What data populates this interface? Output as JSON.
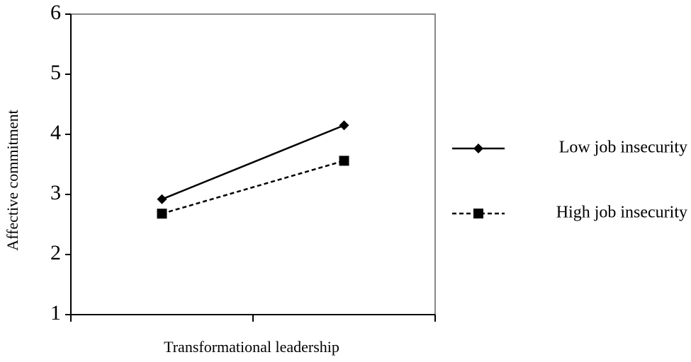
{
  "chart_data": {
    "type": "line",
    "x_label": "Transformational leadership",
    "y_label": "Affective commitment",
    "categories": [
      null,
      null
    ],
    "series": [
      {
        "name": "Low job insecurity",
        "color": "#000000",
        "marker": "diamond",
        "dash": "solid",
        "values": [
          2.92,
          4.15
        ]
      },
      {
        "name": "High job insecurity",
        "color": "#000000",
        "marker": "square",
        "dash": "dashed",
        "values": [
          2.68,
          3.56
        ]
      }
    ],
    "ylim": [
      1,
      6
    ],
    "yticks": [
      1,
      2,
      3,
      4,
      5,
      6
    ],
    "grid": false,
    "legend": "right"
  }
}
